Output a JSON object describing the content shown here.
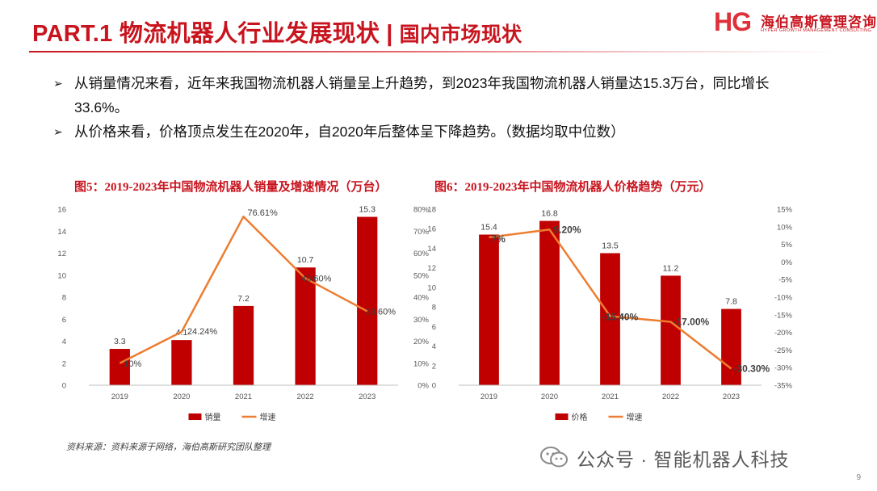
{
  "header": {
    "title_main": "PART.1 物流机器人行业发展现状",
    "title_sep": "|",
    "title_sub": "国内市场现状",
    "logo_mark": "HG",
    "logo_cn": "海伯高斯管理咨询",
    "logo_en": "HYPER GROWTH MANAGEMENT CONSULTING"
  },
  "bullets": [
    {
      "text": "从销量情况来看，近年来我国物流机器人销量呈上升趋势，到2023年我国物流机器人销量达15.3万台，同比增长33.6%。"
    },
    {
      "text": "从价格来看，价格顶点发生在2020年，自2020年后整体呈下降趋势。（数据均取中位数）"
    }
  ],
  "bullet_marker": "➢",
  "colors": {
    "accent": "#c8141e",
    "bar": "#c00000",
    "line": "#ed7d31"
  },
  "chart_data": [
    {
      "type": "bar",
      "title": "图5：2019-2023年中国物流机器人销量及增速情况（万台）",
      "categories": [
        "2019",
        "2020",
        "2021",
        "2022",
        "2023"
      ],
      "series": [
        {
          "name": "销量",
          "type": "bar",
          "axis": "left",
          "values": [
            3.3,
            4.1,
            7.2,
            10.7,
            15.3
          ],
          "labels": [
            "3.3",
            "4.1",
            "7.2",
            "10.7",
            "15.3"
          ]
        },
        {
          "name": "增速",
          "type": "line",
          "axis": "right",
          "values": [
            10,
            24.24,
            76.61,
            48.6,
            33.6
          ],
          "labels": [
            "10%",
            "24.24%",
            "76.61%",
            "48.60%",
            "33.60%"
          ]
        }
      ],
      "left_axis": {
        "min": 0,
        "max": 16,
        "ticks": [
          "0",
          "2",
          "4",
          "6",
          "8",
          "10",
          "12",
          "14",
          "16"
        ]
      },
      "right_axis": {
        "min": 0,
        "max": 80,
        "ticks": [
          "0%",
          "10%",
          "20%",
          "30%",
          "40%",
          "50%",
          "60%",
          "70%",
          "80%"
        ]
      },
      "legend": [
        "销量",
        "增速"
      ],
      "legend_position": "bottom"
    },
    {
      "type": "bar",
      "title": "图6：2019-2023年中国物流机器人价格趋势（万元）",
      "categories": [
        "2019",
        "2020",
        "2021",
        "2022",
        "2023"
      ],
      "series": [
        {
          "name": "价格",
          "type": "bar",
          "axis": "left",
          "values": [
            15.4,
            16.8,
            13.5,
            11.2,
            7.8
          ],
          "labels": [
            "15.4",
            "16.8",
            "13.5",
            "11.2",
            "7.8"
          ]
        },
        {
          "name": "增速",
          "type": "line",
          "axis": "right",
          "values": [
            7,
            9.2,
            -15.4,
            -17.0,
            -30.3
          ],
          "labels": [
            "7%",
            "9.20%",
            "-15.40%",
            "-17.00%",
            "-30.30%"
          ]
        }
      ],
      "left_axis": {
        "min": 0,
        "max": 18,
        "ticks": [
          "0",
          "2",
          "4",
          "6",
          "8",
          "10",
          "12",
          "14",
          "16",
          "18"
        ]
      },
      "right_axis": {
        "min": -35,
        "max": 15,
        "ticks": [
          "-35%",
          "-30%",
          "-25%",
          "-20%",
          "-15%",
          "-10%",
          "-5%",
          "0%",
          "5%",
          "10%",
          "15%"
        ]
      },
      "legend": [
        "价格",
        "增速"
      ],
      "legend_position": "bottom"
    }
  ],
  "footer": {
    "source": "资料来源：资料来源于网络，海伯高斯研究团队整理",
    "watermark": "公众号 · 智能机器人科技",
    "page_number": "9"
  }
}
